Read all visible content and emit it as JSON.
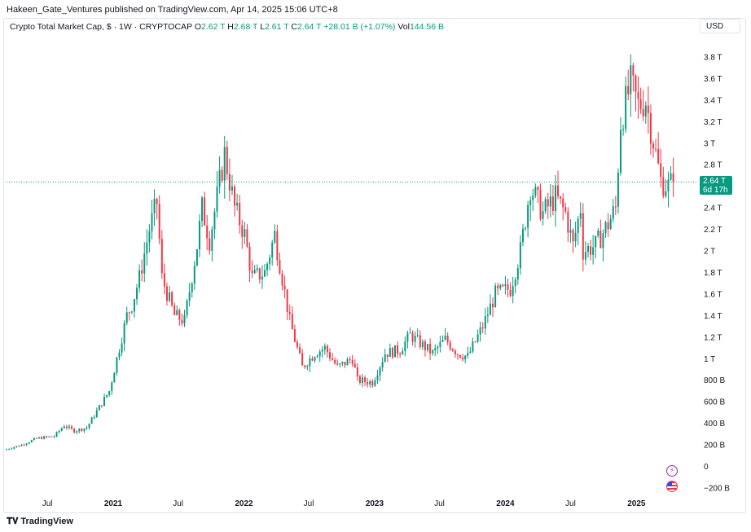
{
  "publisher_line": "Hakeen_Gate_Ventures published on TradingView.com, Apr 14, 2025 15:06 UTC+8",
  "legend": {
    "title": "Crypto Total Market Cap, $ · 1W · CRYPTOCAP",
    "o_label": "O",
    "o_value": "2.62 T",
    "h_label": "H",
    "h_value": "2.68 T",
    "l_label": "L",
    "l_value": "2.61 T",
    "c_label": "C",
    "c_value": "2.64 T",
    "change": "+28.01 B (+1.07%)",
    "vol_label": "Vol",
    "vol_value": "144.56 B"
  },
  "currency_button": "USD",
  "price_label": {
    "value": "2.64 T",
    "countdown": "6d 17h"
  },
  "footer_logo": "TradingView",
  "icons": [
    "lightning-icon",
    "us-flag-icon"
  ],
  "colors": {
    "up": "#089981",
    "down": "#f23645",
    "last_price_line": "#089981"
  },
  "chart_data": {
    "type": "candlestick",
    "timeframe": "1W",
    "y_unit": "USD",
    "ylim": [
      -200000000000,
      4000000000000
    ],
    "y_ticks": [
      {
        "value": -200000000000,
        "label": "−200 B"
      },
      {
        "value": 0,
        "label": "0"
      },
      {
        "value": 200000000000,
        "label": "200 B"
      },
      {
        "value": 400000000000,
        "label": "400 B"
      },
      {
        "value": 600000000000,
        "label": "600 B"
      },
      {
        "value": 800000000000,
        "label": "800 B"
      },
      {
        "value": 1000000000000,
        "label": "1 T"
      },
      {
        "value": 1200000000000,
        "label": "1.2 T"
      },
      {
        "value": 1400000000000,
        "label": "1.4 T"
      },
      {
        "value": 1600000000000,
        "label": "1.6 T"
      },
      {
        "value": 1800000000000,
        "label": "1.8 T"
      },
      {
        "value": 2000000000000,
        "label": "2 T"
      },
      {
        "value": 2200000000000,
        "label": "2.2 T"
      },
      {
        "value": 2400000000000,
        "label": "2.4 T"
      },
      {
        "value": 2600000000000,
        "label": "2.6 T"
      },
      {
        "value": 2800000000000,
        "label": "2.8 T"
      },
      {
        "value": 3000000000000,
        "label": "3 T"
      },
      {
        "value": 3200000000000,
        "label": "3.2 T"
      },
      {
        "value": 3400000000000,
        "label": "3.4 T"
      },
      {
        "value": 3600000000000,
        "label": "3.6 T"
      },
      {
        "value": 3800000000000,
        "label": "3.8 T"
      }
    ],
    "x_range": [
      "2020-03-09",
      "2025-05-19"
    ],
    "x_ticks": [
      {
        "date": "2020-07-01",
        "label": "Jul",
        "year": false
      },
      {
        "date": "2021-01-01",
        "label": "2021",
        "year": true
      },
      {
        "date": "2021-07-01",
        "label": "Jul",
        "year": false
      },
      {
        "date": "2022-01-01",
        "label": "2022",
        "year": true
      },
      {
        "date": "2022-07-01",
        "label": "Jul",
        "year": false
      },
      {
        "date": "2023-01-01",
        "label": "2023",
        "year": true
      },
      {
        "date": "2023-07-01",
        "label": "Jul",
        "year": false
      },
      {
        "date": "2024-01-01",
        "label": "2024",
        "year": true
      },
      {
        "date": "2024-07-01",
        "label": "Jul",
        "year": false
      },
      {
        "date": "2025-01-01",
        "label": "2025",
        "year": true
      }
    ],
    "last_price": 2640000000000,
    "close_series_T": {
      "start": "2020-03-09",
      "step": "1W",
      "keypoints": [
        [
          "2020-03-09",
          0.16
        ],
        [
          "2020-04-20",
          0.2
        ],
        [
          "2020-06-01",
          0.26
        ],
        [
          "2020-07-20",
          0.28
        ],
        [
          "2020-08-17",
          0.38
        ],
        [
          "2020-09-14",
          0.33
        ],
        [
          "2020-10-19",
          0.36
        ],
        [
          "2020-11-23",
          0.55
        ],
        [
          "2020-12-21",
          0.7
        ],
        [
          "2021-01-11",
          1.0
        ],
        [
          "2021-02-08",
          1.4
        ],
        [
          "2021-02-22",
          1.5
        ],
        [
          "2021-03-15",
          1.75
        ],
        [
          "2021-04-12",
          2.2
        ],
        [
          "2021-05-03",
          2.45
        ],
        [
          "2021-05-17",
          1.75
        ],
        [
          "2021-06-21",
          1.4
        ],
        [
          "2021-07-19",
          1.35
        ],
        [
          "2021-08-23",
          2.05
        ],
        [
          "2021-09-06",
          2.4
        ],
        [
          "2021-09-27",
          2.1
        ],
        [
          "2021-11-08",
          2.9
        ],
        [
          "2021-12-06",
          2.4
        ],
        [
          "2022-01-03",
          2.15
        ],
        [
          "2022-01-24",
          1.75
        ],
        [
          "2022-02-28",
          1.8
        ],
        [
          "2022-03-28",
          2.15
        ],
        [
          "2022-05-09",
          1.35
        ],
        [
          "2022-06-13",
          0.92
        ],
        [
          "2022-07-18",
          1.05
        ],
        [
          "2022-08-15",
          1.1
        ],
        [
          "2022-09-19",
          0.92
        ],
        [
          "2022-10-31",
          1.0
        ],
        [
          "2022-11-14",
          0.8
        ],
        [
          "2022-12-26",
          0.78
        ],
        [
          "2023-01-30",
          1.05
        ],
        [
          "2023-03-13",
          1.08
        ],
        [
          "2023-04-10",
          1.22
        ],
        [
          "2023-06-12",
          1.05
        ],
        [
          "2023-07-17",
          1.18
        ],
        [
          "2023-08-21",
          1.05
        ],
        [
          "2023-09-18",
          1.02
        ],
        [
          "2023-10-30",
          1.3
        ],
        [
          "2023-12-04",
          1.6
        ],
        [
          "2024-01-15",
          1.65
        ],
        [
          "2024-02-12",
          2.0
        ],
        [
          "2024-03-11",
          2.6
        ],
        [
          "2024-04-15",
          2.35
        ],
        [
          "2024-05-20",
          2.5
        ],
        [
          "2024-06-17",
          2.35
        ],
        [
          "2024-07-08",
          2.05
        ],
        [
          "2024-07-29",
          2.4
        ],
        [
          "2024-08-05",
          2.0
        ],
        [
          "2024-09-09",
          2.05
        ],
        [
          "2024-10-14",
          2.25
        ],
        [
          "2024-11-04",
          2.4
        ],
        [
          "2024-11-18",
          3.2
        ],
        [
          "2024-12-16",
          3.55
        ],
        [
          "2025-01-06",
          3.35
        ],
        [
          "2025-01-27",
          3.4
        ],
        [
          "2025-02-24",
          2.9
        ],
        [
          "2025-03-10",
          2.65
        ],
        [
          "2025-03-31",
          2.6
        ],
        [
          "2025-04-14",
          2.64
        ]
      ]
    }
  }
}
